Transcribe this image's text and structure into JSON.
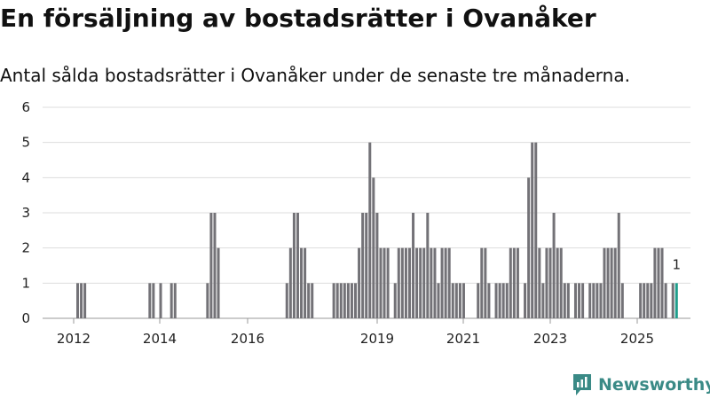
{
  "title": "En försäljning av bostadsrätter i Ovanåker",
  "subtitle": "Antal sålda bostadsrätter i Ovanåker under de senaste tre månaderna.",
  "brand": "Newsworthy",
  "colors": {
    "bar": "#737277",
    "highlight": "#1f9e8c",
    "grid": "#dddddd",
    "brand": "#3a8a86"
  },
  "chart_data": {
    "type": "bar",
    "xlabel": "",
    "ylabel": "",
    "ylim": [
      0,
      6
    ],
    "yticks": [
      0,
      1,
      2,
      3,
      4,
      5,
      6
    ],
    "xticks": [
      "2012",
      "2014",
      "2016",
      "2019",
      "2021",
      "2023",
      "2025"
    ],
    "grid": true,
    "highlight_label": "1",
    "values": [
      1,
      1,
      1,
      0,
      0,
      0,
      0,
      0,
      0,
      0,
      0,
      0,
      0,
      0,
      0,
      0,
      0,
      0,
      0,
      0,
      1,
      1,
      0,
      1,
      0,
      0,
      1,
      1,
      0,
      0,
      0,
      0,
      0,
      0,
      0,
      0,
      1,
      3,
      3,
      2,
      0,
      0,
      0,
      0,
      0,
      0,
      0,
      0,
      0,
      0,
      0,
      0,
      0,
      0,
      0,
      0,
      0,
      0,
      1,
      2,
      3,
      3,
      2,
      2,
      1,
      1,
      0,
      0,
      0,
      0,
      0,
      1,
      1,
      1,
      1,
      1,
      1,
      1,
      2,
      3,
      3,
      5,
      4,
      3,
      2,
      2,
      2,
      0,
      1,
      2,
      2,
      2,
      2,
      3,
      2,
      2,
      2,
      3,
      2,
      2,
      1,
      2,
      2,
      2,
      1,
      1,
      1,
      1,
      0,
      0,
      0,
      1,
      2,
      2,
      1,
      0,
      1,
      1,
      1,
      1,
      2,
      2,
      2,
      0,
      1,
      4,
      5,
      5,
      2,
      1,
      2,
      2,
      3,
      2,
      2,
      1,
      1,
      0,
      1,
      1,
      1,
      0,
      1,
      1,
      1,
      1,
      2,
      2,
      2,
      2,
      3,
      1,
      0,
      0,
      0,
      0,
      1,
      1,
      1,
      1,
      2,
      2,
      2,
      1,
      0,
      1,
      1
    ]
  }
}
